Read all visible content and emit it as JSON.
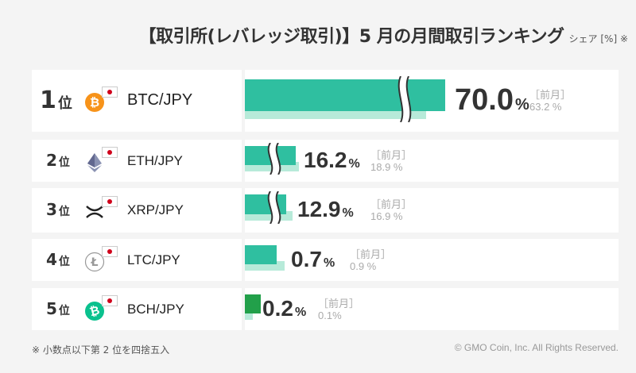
{
  "header": {
    "title": "【取引所(レバレッジ取引)】5 月の月間取引ランキング",
    "suffix": "シェア [%] ※"
  },
  "colors": {
    "current": "#2fbfa0",
    "previous": "#b7ead9",
    "bch_current": "#22a04a",
    "flag_red": "#d0021b"
  },
  "labels": {
    "rank_suffix": "位",
    "pct_sign": "%",
    "prev_label": "［前月］"
  },
  "chart_data": {
    "type": "bar",
    "categories": [
      "BTC/JPY",
      "ETH/JPY",
      "XRP/JPY",
      "LTC/JPY",
      "BCH/JPY"
    ],
    "series": [
      {
        "name": "",
        "values": [
          70.0,
          16.2,
          12.9,
          0.7,
          0.2
        ]
      },
      {
        "name": "前月",
        "values": [
          63.2,
          18.9,
          16.9,
          0.9,
          0.1
        ]
      }
    ],
    "axis_break": true
  },
  "rows": [
    {
      "rank": "1",
      "pair": "BTC/JPY",
      "icon": "bitcoin-icon",
      "value": "70.0",
      "prev": "63.2 %"
    },
    {
      "rank": "2",
      "pair": "ETH/JPY",
      "icon": "ethereum-icon",
      "value": "16.2",
      "prev": "18.9 %"
    },
    {
      "rank": "3",
      "pair": "XRP/JPY",
      "icon": "xrp-icon",
      "value": "12.9",
      "prev": "16.9 %"
    },
    {
      "rank": "4",
      "pair": "LTC/JPY",
      "icon": "litecoin-icon",
      "value": "0.7",
      "prev": "0.9 %"
    },
    {
      "rank": "5",
      "pair": "BCH/JPY",
      "icon": "bitcoin-cash-icon",
      "value": "0.2",
      "prev": "0.1%"
    }
  ],
  "footer": {
    "note": "※ 小数点以下第 2 位を四捨五入",
    "copyright": "© GMO Coin, Inc. All Rights Reserved."
  }
}
